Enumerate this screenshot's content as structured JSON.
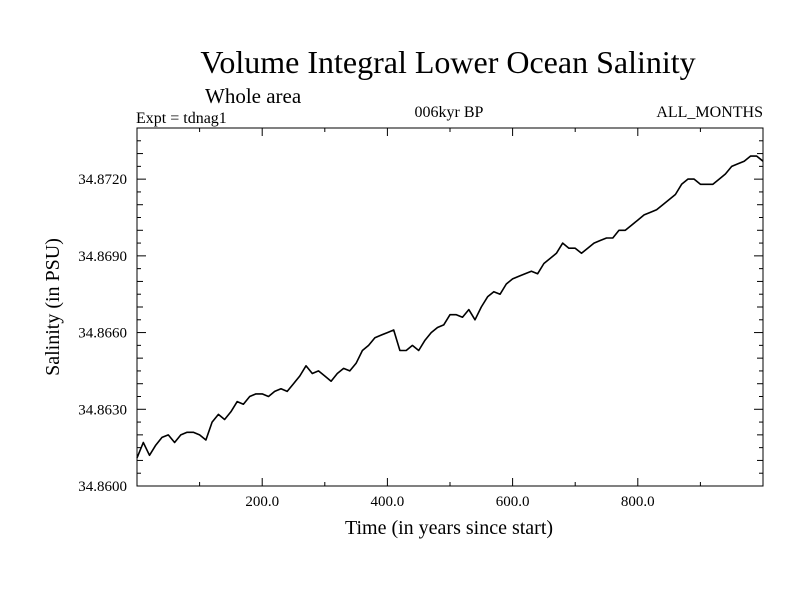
{
  "chart_data": {
    "type": "line",
    "title": "Volume Integral Lower Ocean Salinity",
    "subtitle": "Whole area",
    "experiment_label": "Expt = tdnag1",
    "period_label": "006kyr BP",
    "months_label": "ALL_MONTHS",
    "xlabel": "Time (in years since start)",
    "ylabel": "Salinity (in PSU)",
    "xlim": [
      0,
      1000
    ],
    "ylim": [
      34.86,
      34.874
    ],
    "x_ticks": [
      200,
      400,
      600,
      800
    ],
    "x_tick_labels": [
      "200.0",
      "400.0",
      "600.0",
      "800.0"
    ],
    "y_ticks": [
      34.86,
      34.863,
      34.866,
      34.869,
      34.872
    ],
    "y_tick_labels": [
      "34.8600",
      "34.8630",
      "34.8660",
      "34.8690",
      "34.8720"
    ],
    "series": [
      {
        "name": "Salinity",
        "color": "#000000",
        "x": [
          0,
          10,
          20,
          30,
          40,
          50,
          60,
          70,
          80,
          90,
          100,
          110,
          120,
          130,
          140,
          150,
          160,
          170,
          180,
          190,
          200,
          210,
          220,
          230,
          240,
          250,
          260,
          270,
          280,
          290,
          300,
          310,
          320,
          330,
          340,
          350,
          360,
          370,
          380,
          390,
          400,
          410,
          420,
          430,
          440,
          450,
          460,
          470,
          480,
          490,
          500,
          510,
          520,
          530,
          540,
          550,
          560,
          570,
          580,
          590,
          600,
          610,
          620,
          630,
          640,
          650,
          660,
          670,
          680,
          690,
          700,
          710,
          720,
          730,
          740,
          750,
          760,
          770,
          780,
          790,
          800,
          810,
          820,
          830,
          840,
          850,
          860,
          870,
          880,
          890,
          900,
          910,
          920,
          930,
          940,
          950,
          960,
          970,
          980,
          990,
          1000
        ],
        "values": [
          34.8611,
          34.8617,
          34.8612,
          34.8616,
          34.8619,
          34.862,
          34.8617,
          34.862,
          34.8621,
          34.8621,
          34.862,
          34.8618,
          34.8625,
          34.8628,
          34.8626,
          34.8629,
          34.8633,
          34.8632,
          34.8635,
          34.8636,
          34.8636,
          34.8635,
          34.8637,
          34.8638,
          34.8637,
          34.864,
          34.8643,
          34.8647,
          34.8644,
          34.8645,
          34.8643,
          34.8641,
          34.8644,
          34.8646,
          34.8645,
          34.8648,
          34.8653,
          34.8655,
          34.8658,
          34.8659,
          34.866,
          34.8661,
          34.8653,
          34.8653,
          34.8655,
          34.8653,
          34.8657,
          34.866,
          34.8662,
          34.8663,
          34.8667,
          34.8667,
          34.8666,
          34.8669,
          34.8665,
          34.867,
          34.8674,
          34.8676,
          34.8675,
          34.8679,
          34.8681,
          34.8682,
          34.8683,
          34.8684,
          34.8683,
          34.8687,
          34.8689,
          34.8691,
          34.8695,
          34.8693,
          34.8693,
          34.8691,
          34.8693,
          34.8695,
          34.8696,
          34.8697,
          34.8697,
          34.87,
          34.87,
          34.8702,
          34.8704,
          34.8706,
          34.8707,
          34.8708,
          34.871,
          34.8712,
          34.8714,
          34.8718,
          34.872,
          34.872,
          34.8718,
          34.8718,
          34.8718,
          34.872,
          34.8722,
          34.8725,
          34.8726,
          34.8727,
          34.8729,
          34.8729,
          34.8727
        ]
      }
    ]
  }
}
